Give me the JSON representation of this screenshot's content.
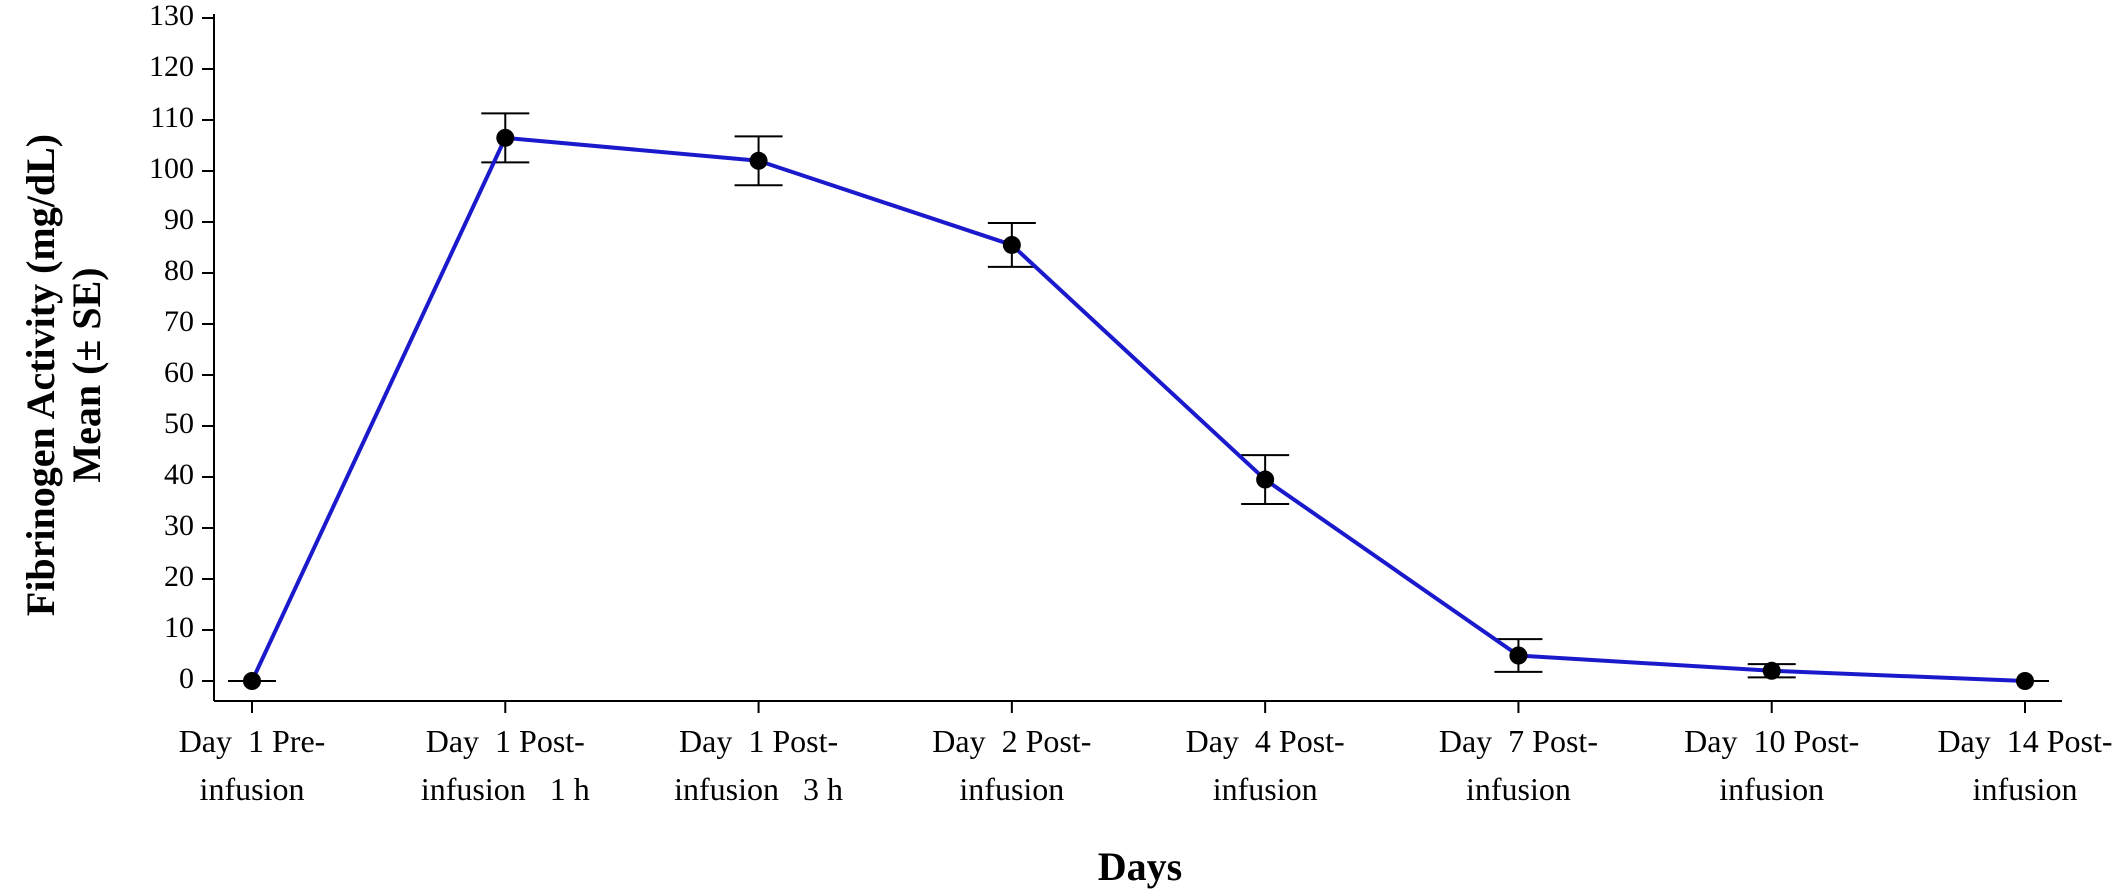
{
  "chart_data": {
    "type": "line",
    "title": "",
    "xlabel": "Days",
    "ylabel": [
      "Fibrinogen Activity (mg/dL)",
      "Mean (± SE)"
    ],
    "ylim": [
      0,
      130
    ],
    "yticks": [
      0,
      10,
      20,
      30,
      40,
      50,
      60,
      70,
      80,
      90,
      100,
      110,
      120,
      130
    ],
    "grid": false,
    "legend": "none",
    "categories": [
      [
        "Day  1 Pre-",
        "infusion"
      ],
      [
        "Day  1 Post-",
        "infusion   1 h"
      ],
      [
        "Day  1 Post-",
        "infusion   3 h"
      ],
      [
        "Day  2 Post-",
        "infusion"
      ],
      [
        "Day  4 Post-",
        "infusion"
      ],
      [
        "Day  7 Post-",
        "infusion"
      ],
      [
        "Day  10 Post-",
        "infusion"
      ],
      [
        "Day  14 Post-",
        "infusion"
      ]
    ],
    "series": [
      {
        "values": [
          0,
          106.5,
          102,
          85.5,
          39.5,
          5,
          2,
          0
        ],
        "se": [
          0,
          4.8,
          4.8,
          4.3,
          4.8,
          3.2,
          1.3,
          0
        ],
        "color": "#1a1acc",
        "marker_color": "#000000"
      }
    ]
  }
}
